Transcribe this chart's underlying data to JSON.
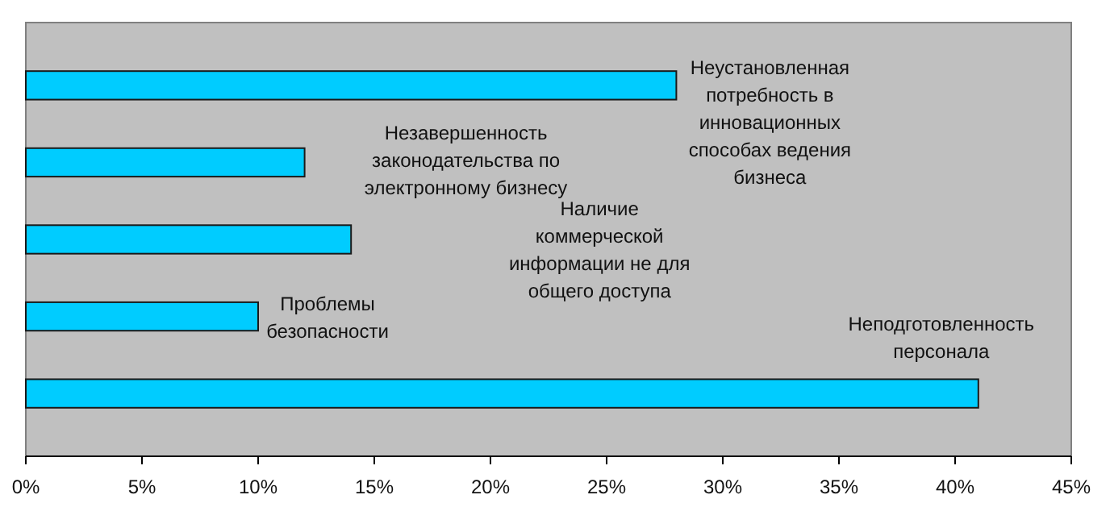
{
  "chart_data": {
    "type": "bar",
    "orientation": "horizontal",
    "categories": [
      null,
      null,
      null,
      null,
      null
    ],
    "annotations": [
      "Неустановленная потребность в инновационных способах ведения бизнеса",
      "Незавершенность законодательства по электронному бизнесу",
      "Наличие коммерческой информации не для общего доступа",
      "Проблемы безопасности",
      "Неподготовленность персонала"
    ],
    "values": [
      28,
      12,
      14,
      10,
      41
    ],
    "color": "#00ccff",
    "xlim": [
      0,
      45
    ],
    "xticks": [
      {
        "value": 0,
        "label": "0%"
      },
      {
        "value": 5,
        "label": "5%"
      },
      {
        "value": 10,
        "label": "10%"
      },
      {
        "value": 15,
        "label": "15%"
      },
      {
        "value": 20,
        "label": "20%"
      },
      {
        "value": 25,
        "label": "25%"
      },
      {
        "value": 30,
        "label": "30%"
      },
      {
        "value": 35,
        "label": "35%"
      },
      {
        "value": 40,
        "label": "40%"
      },
      {
        "value": 45,
        "label": "45%"
      }
    ],
    "grid": false
  }
}
